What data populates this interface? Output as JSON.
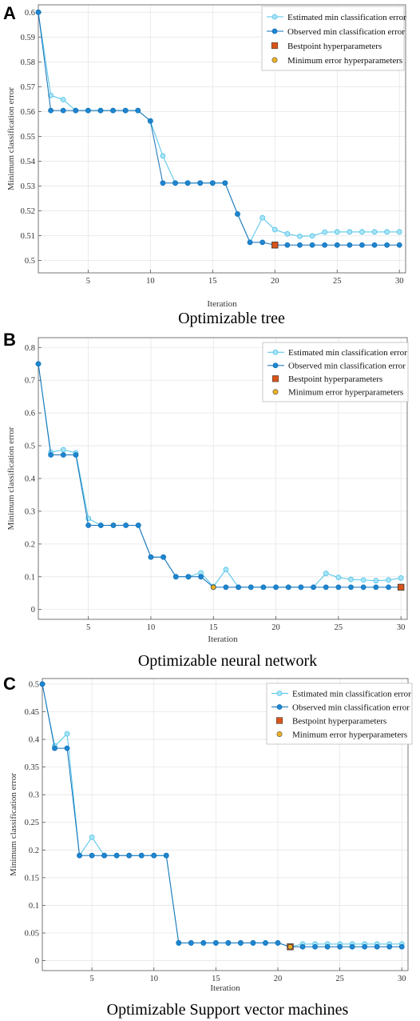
{
  "colors": {
    "estimated": "#4dc3e8",
    "estimated_fill": "#a8e3f7",
    "observed": "#1170b8",
    "observed_fill": "#1f86cf",
    "bestpoint": "#d9541a",
    "minerror": "#edb120",
    "grid": "#e6e6e6",
    "axis": "#555555"
  },
  "legend": {
    "estimated": "Estimated min classification error",
    "observed": "Observed min classification error",
    "bestpoint": "Bestpoint hyperparameters",
    "minerror": "Minimum error hyperparameters"
  },
  "chart_data": [
    {
      "panel_label": "A",
      "type": "line",
      "title": "Optimizable tree",
      "xlabel": "Iteration",
      "ylabel": "Minimum classification error",
      "xlim": [
        1,
        30.5
      ],
      "ylim": [
        0.495,
        0.603
      ],
      "xticks": [
        5,
        10,
        15,
        20,
        25,
        30
      ],
      "yticks": [
        0.5,
        0.51,
        0.52,
        0.53,
        0.54,
        0.55,
        0.56,
        0.57,
        0.58,
        0.59,
        0.6
      ],
      "grid": true,
      "legend_position": "top-right",
      "x": [
        1,
        2,
        3,
        4,
        5,
        6,
        7,
        8,
        9,
        10,
        11,
        12,
        13,
        14,
        15,
        16,
        17,
        18,
        19,
        20,
        21,
        22,
        23,
        24,
        25,
        26,
        27,
        28,
        29,
        30
      ],
      "series": [
        {
          "key": "estimated",
          "values": [
            0.6,
            0.5665,
            0.5648,
            0.5604,
            0.5604,
            0.5604,
            0.5604,
            0.5604,
            0.5604,
            0.5562,
            0.5421,
            0.5312,
            0.5312,
            0.5312,
            0.5312,
            0.5312,
            0.5187,
            0.5073,
            0.5172,
            0.5124,
            0.5107,
            0.5097,
            0.5099,
            0.5114,
            0.5115,
            0.5115,
            0.5115,
            0.5115,
            0.5115,
            0.5115
          ]
        },
        {
          "key": "observed",
          "values": [
            0.6,
            0.5604,
            0.5604,
            0.5604,
            0.5604,
            0.5604,
            0.5604,
            0.5604,
            0.5604,
            0.5562,
            0.5312,
            0.5312,
            0.5312,
            0.5312,
            0.5312,
            0.5312,
            0.5187,
            0.5073,
            0.5073,
            0.5062,
            0.5062,
            0.5062,
            0.5062,
            0.5062,
            0.5062,
            0.5062,
            0.5062,
            0.5062,
            0.5062,
            0.5062
          ]
        }
      ],
      "bestpoint": {
        "x": 20,
        "y": 0.5062
      },
      "minerror": null
    },
    {
      "panel_label": "B",
      "type": "line",
      "title": "Optimizable neural network",
      "xlabel": "Iteration",
      "ylabel": "Minimum classification error",
      "xlim": [
        1,
        30.5
      ],
      "ylim": [
        -0.03,
        0.83
      ],
      "xticks": [
        5,
        10,
        15,
        20,
        25,
        30
      ],
      "yticks": [
        0,
        0.1,
        0.2,
        0.3,
        0.4,
        0.5,
        0.6,
        0.7,
        0.8
      ],
      "grid": true,
      "legend_position": "top-right",
      "x": [
        1,
        2,
        3,
        4,
        5,
        6,
        7,
        8,
        9,
        10,
        11,
        12,
        13,
        14,
        15,
        16,
        17,
        18,
        19,
        20,
        21,
        22,
        23,
        24,
        25,
        26,
        27,
        28,
        29,
        30
      ],
      "series": [
        {
          "key": "estimated",
          "values": [
            0.75,
            0.48,
            0.488,
            0.478,
            0.278,
            0.257,
            0.257,
            0.257,
            0.257,
            0.16,
            0.16,
            0.1,
            0.1,
            0.112,
            0.07,
            0.122,
            0.068,
            0.068,
            0.068,
            0.068,
            0.068,
            0.068,
            0.068,
            0.11,
            0.098,
            0.092,
            0.09,
            0.088,
            0.09,
            0.096
          ]
        },
        {
          "key": "observed",
          "values": [
            0.75,
            0.472,
            0.472,
            0.472,
            0.257,
            0.257,
            0.257,
            0.257,
            0.257,
            0.16,
            0.16,
            0.1,
            0.1,
            0.1,
            0.068,
            0.068,
            0.068,
            0.068,
            0.068,
            0.068,
            0.068,
            0.068,
            0.068,
            0.068,
            0.068,
            0.068,
            0.068,
            0.068,
            0.068,
            0.068
          ]
        }
      ],
      "bestpoint": {
        "x": 30,
        "y": 0.068
      },
      "minerror": {
        "x": 15,
        "y": 0.068
      }
    },
    {
      "panel_label": "C",
      "type": "line",
      "title": "Optimizable Support vector machines",
      "xlabel": "Iteration",
      "ylabel": "Minimum classification error",
      "xlim": [
        1,
        30.5
      ],
      "ylim": [
        -0.018,
        0.51
      ],
      "xticks": [
        5,
        10,
        15,
        20,
        25,
        30
      ],
      "yticks": [
        0,
        0.05,
        0.1,
        0.15,
        0.2,
        0.25,
        0.3,
        0.35,
        0.4,
        0.45,
        0.5
      ],
      "grid": true,
      "legend_position": "top-right",
      "x": [
        1,
        2,
        3,
        4,
        5,
        6,
        7,
        8,
        9,
        10,
        11,
        12,
        13,
        14,
        15,
        16,
        17,
        18,
        19,
        20,
        21,
        22,
        23,
        24,
        25,
        26,
        27,
        28,
        29,
        30
      ],
      "series": [
        {
          "key": "estimated",
          "values": [
            0.5,
            0.388,
            0.41,
            0.19,
            0.223,
            0.19,
            0.19,
            0.19,
            0.19,
            0.19,
            0.19,
            0.032,
            0.032,
            0.032,
            0.032,
            0.032,
            0.032,
            0.032,
            0.032,
            0.032,
            0.025,
            0.03,
            0.03,
            0.03,
            0.03,
            0.03,
            0.03,
            0.03,
            0.03,
            0.03
          ]
        },
        {
          "key": "observed",
          "values": [
            0.5,
            0.384,
            0.384,
            0.19,
            0.19,
            0.19,
            0.19,
            0.19,
            0.19,
            0.19,
            0.19,
            0.032,
            0.032,
            0.032,
            0.032,
            0.032,
            0.032,
            0.032,
            0.032,
            0.032,
            0.025,
            0.025,
            0.025,
            0.025,
            0.025,
            0.025,
            0.025,
            0.025,
            0.025,
            0.025
          ]
        }
      ],
      "bestpoint": {
        "x": 21,
        "y": 0.025
      },
      "minerror": {
        "x": 21,
        "y": 0.025
      }
    }
  ]
}
